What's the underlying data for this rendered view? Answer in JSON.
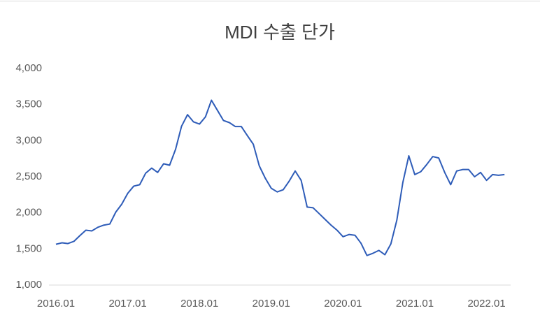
{
  "chart_data": {
    "type": "line",
    "title": "MDI 수출 단가",
    "categories": [
      "2016.01",
      null,
      null,
      null,
      null,
      null,
      null,
      null,
      null,
      null,
      null,
      null,
      "2017.01",
      null,
      null,
      null,
      null,
      null,
      null,
      null,
      null,
      null,
      null,
      null,
      "2018.01",
      null,
      null,
      null,
      null,
      null,
      null,
      null,
      null,
      null,
      null,
      null,
      "2019.01",
      null,
      null,
      null,
      null,
      null,
      null,
      null,
      null,
      null,
      null,
      null,
      "2020.01",
      null,
      null,
      null,
      null,
      null,
      null,
      null,
      null,
      null,
      null,
      null,
      "2021.01",
      null,
      null,
      null,
      null,
      null,
      null,
      null,
      null,
      null,
      null,
      null,
      "2022.01",
      null,
      null,
      null
    ],
    "series": [
      {
        "color": "#2e5cb8",
        "values": [
          1565,
          1585,
          1575,
          1605,
          1685,
          1760,
          1750,
          1800,
          1830,
          1845,
          2010,
          2120,
          2270,
          2370,
          2390,
          2550,
          2620,
          2560,
          2680,
          2660,
          2880,
          3200,
          3360,
          3260,
          3230,
          3330,
          3560,
          3420,
          3280,
          3250,
          3195,
          3195,
          3070,
          2950,
          2650,
          2480,
          2340,
          2290,
          2320,
          2440,
          2580,
          2450,
          2080,
          2070,
          1990,
          1910,
          1830,
          1760,
          1670,
          1700,
          1690,
          1580,
          1410,
          1440,
          1480,
          1420,
          1570,
          1900,
          2420,
          2790,
          2530,
          2570,
          2670,
          2780,
          2760,
          2560,
          2390,
          2580,
          2600,
          2600,
          2500,
          2560,
          2450,
          2530,
          2520,
          2530
        ]
      }
    ],
    "ylim": [
      1000,
      4000
    ],
    "yticks": [
      {
        "value": 1000,
        "label": "1,000"
      },
      {
        "value": 1500,
        "label": "1,500"
      },
      {
        "value": 2000,
        "label": "2,000"
      },
      {
        "value": 2500,
        "label": "2,500"
      },
      {
        "value": 3000,
        "label": "3,000"
      },
      {
        "value": 3500,
        "label": "3,500"
      },
      {
        "value": 4000,
        "label": "4,000"
      }
    ],
    "grid": false
  }
}
